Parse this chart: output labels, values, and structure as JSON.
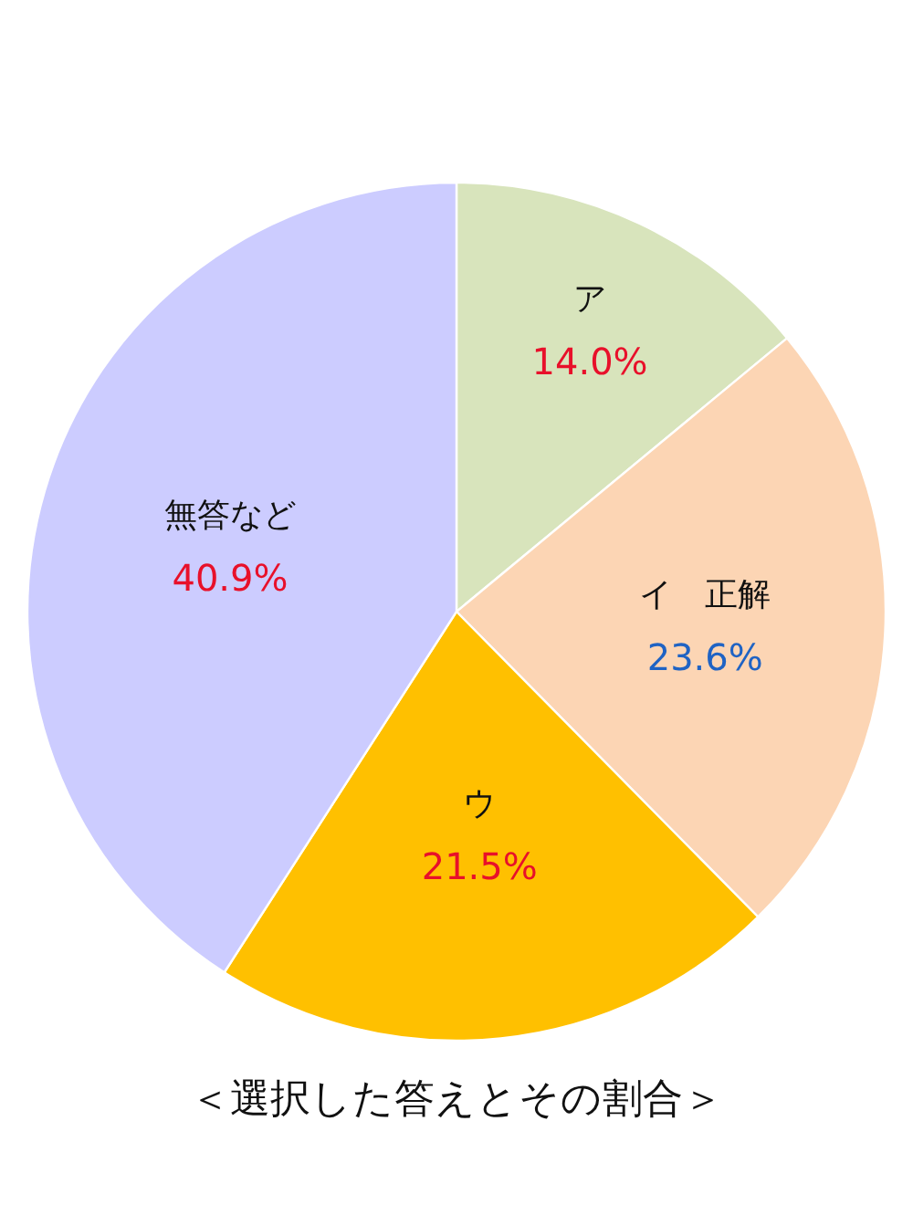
{
  "chart_data": {
    "type": "pie",
    "title": "＜選択した答えとその割合＞",
    "categories": [
      "ア",
      "イ　正解",
      "ウ",
      "無答など"
    ],
    "values": [
      14.0,
      23.6,
      21.5,
      40.9
    ],
    "colors": [
      "#d8e4bc",
      "#fcd5b4",
      "#ffc000",
      "#ccccff"
    ],
    "value_labels": [
      "14.0%",
      "23.6%",
      "21.5%",
      "40.9%"
    ]
  }
}
